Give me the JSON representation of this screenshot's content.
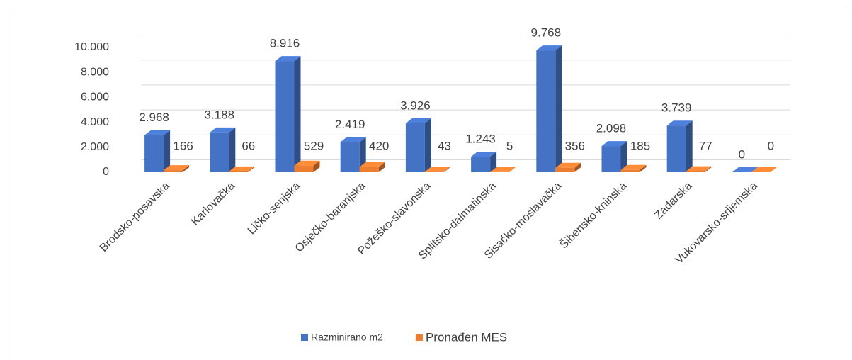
{
  "chart_data": {
    "type": "bar3d",
    "categories": [
      "Brodsko-posavska",
      "Karlovačka",
      "Ličko-senjska",
      "Osječko-baranjska",
      "Požeško-slavonska",
      "Splitsko-dalmatinska",
      "Sisačko-moslavačka",
      "Šibensko-kninska",
      "Zadarska",
      "Vukovarsko-srijemska"
    ],
    "series": [
      {
        "name": "Razminirano m2",
        "color": "#4472c4",
        "values": [
          2968,
          3188,
          8916,
          2419,
          3926,
          1243,
          9768,
          2098,
          3739,
          0
        ],
        "value_labels": [
          "2.968",
          "3.188",
          "8.916",
          "2.419",
          "3.926",
          "1.243",
          "9.768",
          "2.098",
          "3.739",
          "0"
        ]
      },
      {
        "name": "Pronađen MES",
        "color": "#ed7d31",
        "values": [
          166,
          66,
          529,
          420,
          43,
          5,
          356,
          185,
          77,
          0
        ]
      }
    ],
    "ylim": [
      0,
      10000
    ],
    "yticks": [
      0,
      {
        "value": 2000,
        "label": "2.000"
      },
      {
        "value": 4000,
        "label": "4.000"
      },
      {
        "value": 6000,
        "label": "6.000"
      },
      {
        "value": 8000,
        "label": "8.000"
      },
      {
        "value": 10000,
        "label": "10.000"
      }
    ],
    "grid": true,
    "legend": "bottom"
  }
}
